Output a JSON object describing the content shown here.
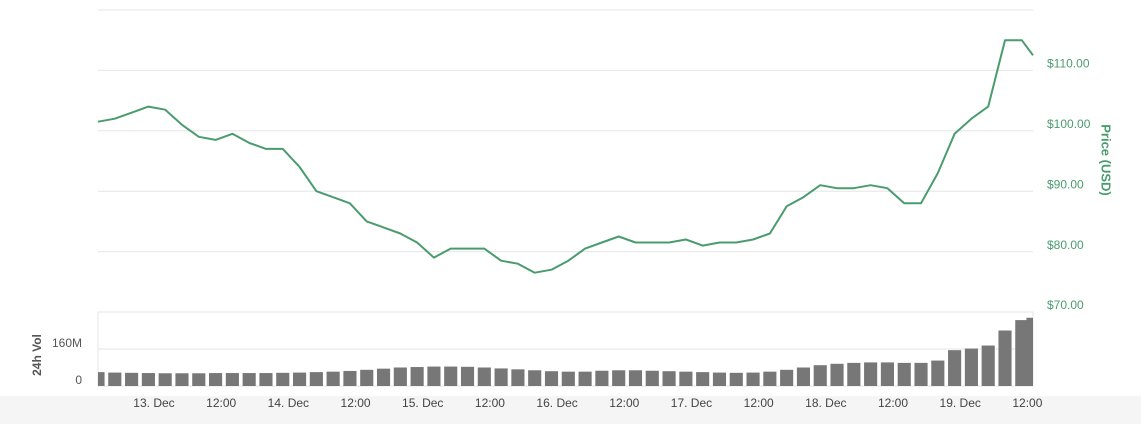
{
  "chart_data": {
    "type": "line",
    "y_label": "Price (USD)",
    "y2_label": "24h Vol",
    "x": [
      "12. Dec 14:00",
      "12. Dec 17:00",
      "12. Dec 20:00",
      "12. Dec 23:00",
      "13. Dec 02:00",
      "13. Dec 05:00",
      "13. Dec 08:00",
      "13. Dec 11:00",
      "13. Dec 14:00",
      "13. Dec 17:00",
      "13. Dec 20:00",
      "13. Dec 23:00",
      "14. Dec 02:00",
      "14. Dec 05:00",
      "14. Dec 08:00",
      "14. Dec 11:00",
      "14. Dec 14:00",
      "14. Dec 17:00",
      "14. Dec 20:00",
      "14. Dec 23:00",
      "15. Dec 02:00",
      "15. Dec 05:00",
      "15. Dec 08:00",
      "15. Dec 11:00",
      "15. Dec 14:00",
      "15. Dec 17:00",
      "15. Dec 20:00",
      "15. Dec 23:00",
      "16. Dec 02:00",
      "16. Dec 05:00",
      "16. Dec 08:00",
      "16. Dec 11:00",
      "16. Dec 14:00",
      "16. Dec 17:00",
      "16. Dec 20:00",
      "16. Dec 23:00",
      "17. Dec 02:00",
      "17. Dec 05:00",
      "17. Dec 08:00",
      "17. Dec 11:00",
      "17. Dec 14:00",
      "17. Dec 17:00",
      "17. Dec 20:00",
      "17. Dec 23:00",
      "18. Dec 02:00",
      "18. Dec 05:00",
      "18. Dec 08:00",
      "18. Dec 11:00",
      "18. Dec 14:00",
      "18. Dec 17:00",
      "18. Dec 20:00",
      "18. Dec 23:00",
      "19. Dec 02:00",
      "19. Dec 05:00",
      "19. Dec 08:00",
      "19. Dec 11:00",
      "19. Dec 13:00"
    ],
    "xlim": [
      "12. Dec 14:00",
      "19. Dec 13:00"
    ],
    "xticks": [
      {
        "value": "13. Dec 00:00",
        "label": "13. Dec"
      },
      {
        "value": "13. Dec 12:00",
        "label": "12:00"
      },
      {
        "value": "14. Dec 00:00",
        "label": "14. Dec"
      },
      {
        "value": "14. Dec 12:00",
        "label": "12:00"
      },
      {
        "value": "15. Dec 00:00",
        "label": "15. Dec"
      },
      {
        "value": "15. Dec 12:00",
        "label": "12:00"
      },
      {
        "value": "16. Dec 00:00",
        "label": "16. Dec"
      },
      {
        "value": "16. Dec 12:00",
        "label": "12:00"
      },
      {
        "value": "17. Dec 00:00",
        "label": "17. Dec"
      },
      {
        "value": "17. Dec 12:00",
        "label": "12:00"
      },
      {
        "value": "18. Dec 00:00",
        "label": "18. Dec"
      },
      {
        "value": "18. Dec 12:00",
        "label": "12:00"
      },
      {
        "value": "19. Dec 00:00",
        "label": "19. Dec"
      },
      {
        "value": "19. Dec 12:00",
        "label": "12:00"
      }
    ],
    "ylim": [
      70,
      120
    ],
    "yticks": [
      {
        "value": 70,
        "label": "$70.00"
      },
      {
        "value": 80,
        "label": "$80.00"
      },
      {
        "value": 90,
        "label": "$90.00"
      },
      {
        "value": 100,
        "label": "$100.00"
      },
      {
        "value": 110,
        "label": "$110.00"
      },
      {
        "value": 120,
        "label": null
      }
    ],
    "y2lim": [
      0,
      320000000
    ],
    "y2ticks": [
      0,
      {
        "value": 160000000,
        "label": "160M"
      }
    ],
    "grid": true,
    "series": [
      {
        "type": "line",
        "color": "#4a9c6e",
        "values": [
          101.5,
          102,
          103,
          104,
          103.5,
          101,
          99,
          98.5,
          99.5,
          98,
          97,
          97,
          94,
          90,
          89,
          88,
          85,
          84,
          83,
          81.5,
          79,
          80.5,
          80.5,
          80.5,
          78.5,
          78,
          76.5,
          77,
          78.5,
          80.5,
          81.5,
          82.5,
          81.5,
          81.5,
          81.5,
          82,
          81,
          81.5,
          81.5,
          82,
          83,
          87.5,
          89,
          91,
          90.5,
          90.5,
          91,
          90.5,
          88,
          88,
          93,
          99.5,
          102,
          104,
          115,
          115,
          112.5
        ]
      },
      {
        "type": "bar",
        "axis": "y2",
        "color": "#777777",
        "values": [
          60000000,
          58000000,
          57000000,
          56000000,
          55000000,
          55000000,
          55000000,
          56000000,
          56000000,
          56000000,
          56000000,
          57000000,
          58000000,
          60000000,
          62000000,
          65000000,
          70000000,
          75000000,
          80000000,
          82000000,
          84000000,
          84000000,
          83000000,
          80000000,
          76000000,
          72000000,
          68000000,
          64000000,
          62000000,
          62000000,
          66000000,
          68000000,
          68000000,
          66000000,
          64000000,
          62000000,
          60000000,
          58000000,
          57000000,
          58000000,
          62000000,
          70000000,
          80000000,
          90000000,
          96000000,
          100000000,
          102000000,
          102000000,
          100000000,
          100000000,
          110000000,
          155000000,
          162000000,
          175000000,
          240000000,
          285000000,
          295000000
        ]
      }
    ]
  }
}
